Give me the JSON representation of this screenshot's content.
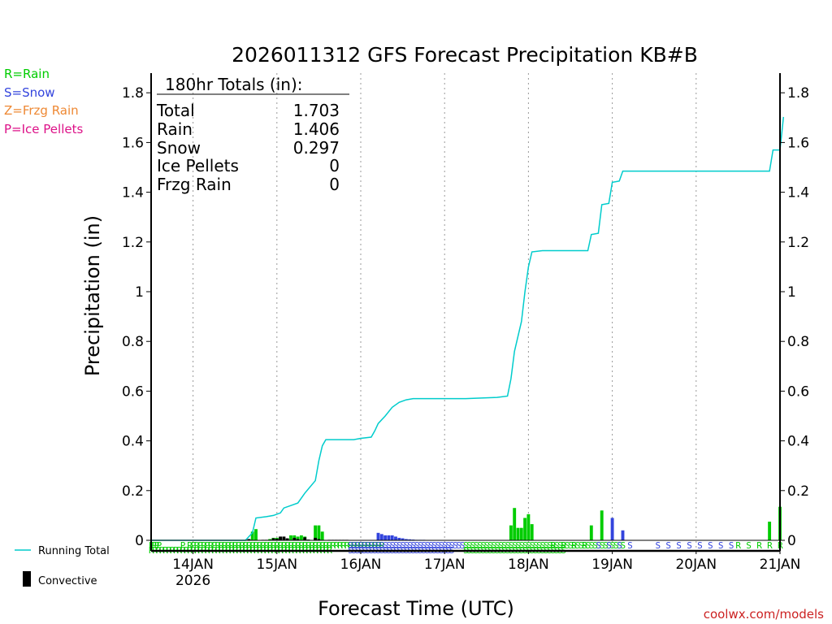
{
  "colors": {
    "rain": "#00cc00",
    "snow": "#3344dd",
    "frzg": "#ee8833",
    "ice": "#dd1188",
    "running": "#00cccc",
    "credit": "#cc2222"
  },
  "legend_keys": [
    {
      "text": "R=Rain",
      "color": "#00cc00"
    },
    {
      "text": "S=Snow",
      "color": "#3344dd"
    },
    {
      "text": "Z=Frzg Rain",
      "color": "#ee8833"
    },
    {
      "text": "P=Ice Pellets",
      "color": "#dd1188"
    }
  ],
  "bottom_legend": {
    "running": "Running Total",
    "convective": "Convective"
  },
  "credit": "coolwx.com/models",
  "totals": {
    "header": "180hr Totals (in):",
    "rows": [
      {
        "label": "Total",
        "value": "1.703"
      },
      {
        "label": "Rain",
        "value": "1.406"
      },
      {
        "label": "Snow",
        "value": "0.297"
      },
      {
        "label": "Ice Pellets",
        "value": "0"
      },
      {
        "label": "Frzg Rain",
        "value": "0"
      }
    ]
  },
  "chart_data": {
    "type": "bar",
    "title": "2026011312 GFS Forecast Precipitation KB#B",
    "xlabel": "Forecast Time (UTC)",
    "ylabel": "Precipitation (in)",
    "ylim": [
      0,
      1.85
    ],
    "xlim_hours": [
      0,
      180
    ],
    "yticks": [
      0,
      0.2,
      0.4,
      0.6,
      0.8,
      1,
      1.2,
      1.4,
      1.6,
      1.8
    ],
    "ytick_labels": [
      "0",
      "0.2",
      "0.4",
      "0.6",
      "0.8",
      "1",
      "1.2",
      "1.4",
      "1.6",
      "1.8"
    ],
    "xticks": [
      {
        "hour": 12,
        "label": "14JAN",
        "sub": "2026"
      },
      {
        "hour": 36,
        "label": "15JAN"
      },
      {
        "hour": 60,
        "label": "16JAN"
      },
      {
        "hour": 84,
        "label": "17JAN"
      },
      {
        "hour": 108,
        "label": "18JAN"
      },
      {
        "hour": 132,
        "label": "19JAN"
      },
      {
        "hour": 156,
        "label": "20JAN"
      },
      {
        "hour": 180,
        "label": "21JAN"
      }
    ],
    "grid_hours": [
      12,
      36,
      60,
      84,
      108,
      132,
      156
    ],
    "running_total": [
      [
        0,
        0
      ],
      [
        27,
        0
      ],
      [
        29,
        0.03
      ],
      [
        30,
        0.09
      ],
      [
        33,
        0.095
      ],
      [
        35,
        0.1
      ],
      [
        37,
        0.11
      ],
      [
        38,
        0.13
      ],
      [
        40,
        0.14
      ],
      [
        42,
        0.15
      ],
      [
        44,
        0.19
      ],
      [
        47,
        0.24
      ],
      [
        48,
        0.32
      ],
      [
        49,
        0.38
      ],
      [
        50,
        0.405
      ],
      [
        58,
        0.405
      ],
      [
        60,
        0.41
      ],
      [
        63,
        0.415
      ],
      [
        64,
        0.44
      ],
      [
        65,
        0.47
      ],
      [
        67,
        0.5
      ],
      [
        69,
        0.535
      ],
      [
        71,
        0.555
      ],
      [
        73,
        0.565
      ],
      [
        75,
        0.57
      ],
      [
        90,
        0.57
      ],
      [
        99,
        0.575
      ],
      [
        102,
        0.58
      ],
      [
        103,
        0.65
      ],
      [
        104,
        0.76
      ],
      [
        106,
        0.88
      ],
      [
        107,
        1.0
      ],
      [
        108,
        1.1
      ],
      [
        109,
        1.16
      ],
      [
        112,
        1.165
      ],
      [
        125,
        1.165
      ],
      [
        126,
        1.23
      ],
      [
        128,
        1.235
      ],
      [
        129,
        1.35
      ],
      [
        131,
        1.355
      ],
      [
        132,
        1.44
      ],
      [
        134,
        1.445
      ],
      [
        135,
        1.485
      ],
      [
        177,
        1.485
      ],
      [
        178,
        1.57
      ],
      [
        180,
        1.57
      ],
      [
        181,
        1.703
      ]
    ],
    "rain_bars": [
      [
        29,
        0.035
      ],
      [
        30,
        0.045
      ],
      [
        34,
        0.005
      ],
      [
        35,
        0.01
      ],
      [
        36,
        0.01
      ],
      [
        37,
        0.01
      ],
      [
        38,
        0.01
      ],
      [
        40,
        0.02
      ],
      [
        41,
        0.02
      ],
      [
        42,
        0.015
      ],
      [
        43,
        0.02
      ],
      [
        44,
        0.015
      ],
      [
        47,
        0.06
      ],
      [
        48,
        0.06
      ],
      [
        49,
        0.035
      ],
      [
        103,
        0.06
      ],
      [
        104,
        0.13
      ],
      [
        105,
        0.05
      ],
      [
        106,
        0.05
      ],
      [
        107,
        0.09
      ],
      [
        108,
        0.105
      ],
      [
        109,
        0.065
      ],
      [
        126,
        0.06
      ],
      [
        129,
        0.12
      ],
      [
        177,
        0.075
      ],
      [
        180,
        0.135
      ]
    ],
    "snow_bars": [
      [
        65,
        0.03
      ],
      [
        66,
        0.025
      ],
      [
        67,
        0.02
      ],
      [
        68,
        0.02
      ],
      [
        69,
        0.02
      ],
      [
        70,
        0.015
      ],
      [
        71,
        0.01
      ],
      [
        72,
        0.008
      ],
      [
        73,
        0.005
      ],
      [
        74,
        0.004
      ],
      [
        75,
        0.003
      ],
      [
        76,
        0.002
      ],
      [
        77,
        0.002
      ],
      [
        78,
        0.002
      ],
      [
        79,
        0.001
      ],
      [
        80,
        0.001
      ],
      [
        81,
        0.001
      ],
      [
        132,
        0.09
      ],
      [
        135,
        0.04
      ]
    ],
    "conv_bars": [
      [
        28,
        0.005
      ],
      [
        32,
        0.002
      ],
      [
        33,
        0.002
      ],
      [
        34,
        0.002
      ],
      [
        35,
        0.008
      ],
      [
        36,
        0.006
      ],
      [
        37,
        0.015
      ],
      [
        38,
        0.015
      ],
      [
        39,
        0.008
      ],
      [
        41,
        0.01
      ],
      [
        42,
        0.005
      ],
      [
        44,
        0.012
      ],
      [
        45,
        0.003
      ],
      [
        47,
        0.01
      ],
      [
        48,
        0.005
      ],
      [
        51,
        0.002
      ],
      [
        52,
        0.002
      ],
      [
        53,
        0.002
      ],
      [
        54,
        0.002
      ],
      [
        55,
        0.002
      ],
      [
        56,
        0.002
      ],
      [
        57,
        0.001
      ],
      [
        58,
        0.001
      ],
      [
        59,
        0.001
      ]
    ],
    "ptype_rows": [
      {
        "text": "PPPP",
        "start": 0,
        "step": 0.75,
        "color": "#00cc00",
        "row": 0
      },
      {
        "text": "P",
        "start": 9,
        "step": 1,
        "color": "#00cc00",
        "row": 0
      },
      {
        "text": "RPRPRPRPRRRRRRRRRRRRRRRRRRRRRRRRRRRRRRRRRRRRRRRRRRRRRRRR",
        "start": 11,
        "step": 1,
        "color": "#00cc00",
        "row": 0
      },
      {
        "text": "SSSSSSSSSSSSSSSSSSSSSSSSSSSSSSSSS",
        "start": 57,
        "step": 1,
        "color": "#3344dd",
        "row": 0
      },
      {
        "text": "SSSSSSSSSSSSSSSSSSSSSSSSSSSSSSSSSSSSSSSSSSSSSS",
        "start": 90,
        "step": 1,
        "color": "#00cc00",
        "row": 0
      },
      {
        "text": "RRRR",
        "start": 115,
        "step": 3,
        "color": "#00cc00",
        "row": 0
      },
      {
        "text": "SSSS",
        "start": 128,
        "step": 3,
        "color": "#3344dd",
        "row": 0
      },
      {
        "text": "SSSSSSSS",
        "start": 145,
        "step": 3,
        "color": "#3344dd",
        "row": 0
      },
      {
        "text": "RSRRR",
        "start": 168,
        "step": 3,
        "color": "#00cc00",
        "row": 0
      },
      {
        "text": "RRRRRRRRRRRRRRRRRRRRRRRRRRRRRRRRRRRRRRRRRRRRRRRRRRRR",
        "start": 0,
        "step": 1,
        "color": "#00cc00",
        "row": 1
      },
      {
        "text": "SSSSSSSSSSSSSSSSSSSSSSSSSSSSSS",
        "start": 57,
        "step": 1,
        "color": "#3344dd",
        "row": 1
      },
      {
        "text": "SSSSSSSSSSSSSSSSSSSSSSSSSSSSS",
        "start": 90,
        "step": 1,
        "color": "#00cc00",
        "row": 1
      }
    ]
  }
}
